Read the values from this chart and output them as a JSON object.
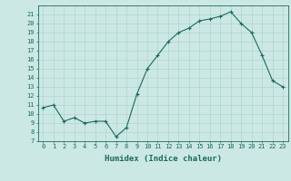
{
  "x": [
    0,
    1,
    2,
    3,
    4,
    5,
    6,
    7,
    8,
    9,
    10,
    11,
    12,
    13,
    14,
    15,
    16,
    17,
    18,
    19,
    20,
    21,
    22,
    23
  ],
  "y": [
    10.7,
    11.0,
    9.2,
    9.6,
    9.0,
    9.2,
    9.2,
    7.5,
    8.5,
    12.2,
    15.0,
    16.5,
    18.0,
    19.0,
    19.5,
    20.3,
    20.5,
    20.8,
    21.3,
    20.0,
    19.0,
    16.5,
    13.7,
    13.0
  ],
  "xlabel": "Humidex (Indice chaleur)",
  "xlim": [
    -0.5,
    23.5
  ],
  "ylim": [
    7,
    22
  ],
  "yticks": [
    7,
    8,
    9,
    10,
    11,
    12,
    13,
    14,
    15,
    16,
    17,
    18,
    19,
    20,
    21
  ],
  "xticks": [
    0,
    1,
    2,
    3,
    4,
    5,
    6,
    7,
    8,
    9,
    10,
    11,
    12,
    13,
    14,
    15,
    16,
    17,
    18,
    19,
    20,
    21,
    22,
    23
  ],
  "line_color": "#1a6b5a",
  "marker_color": "#1a6b5a",
  "bg_color": "#cce8e4",
  "grid_color": "#aacfca",
  "axis_color": "#1a6b5a",
  "tick_color": "#1a6b5a",
  "label_color": "#1a6b5a",
  "tick_fontsize": 5.0,
  "xlabel_fontsize": 6.5
}
